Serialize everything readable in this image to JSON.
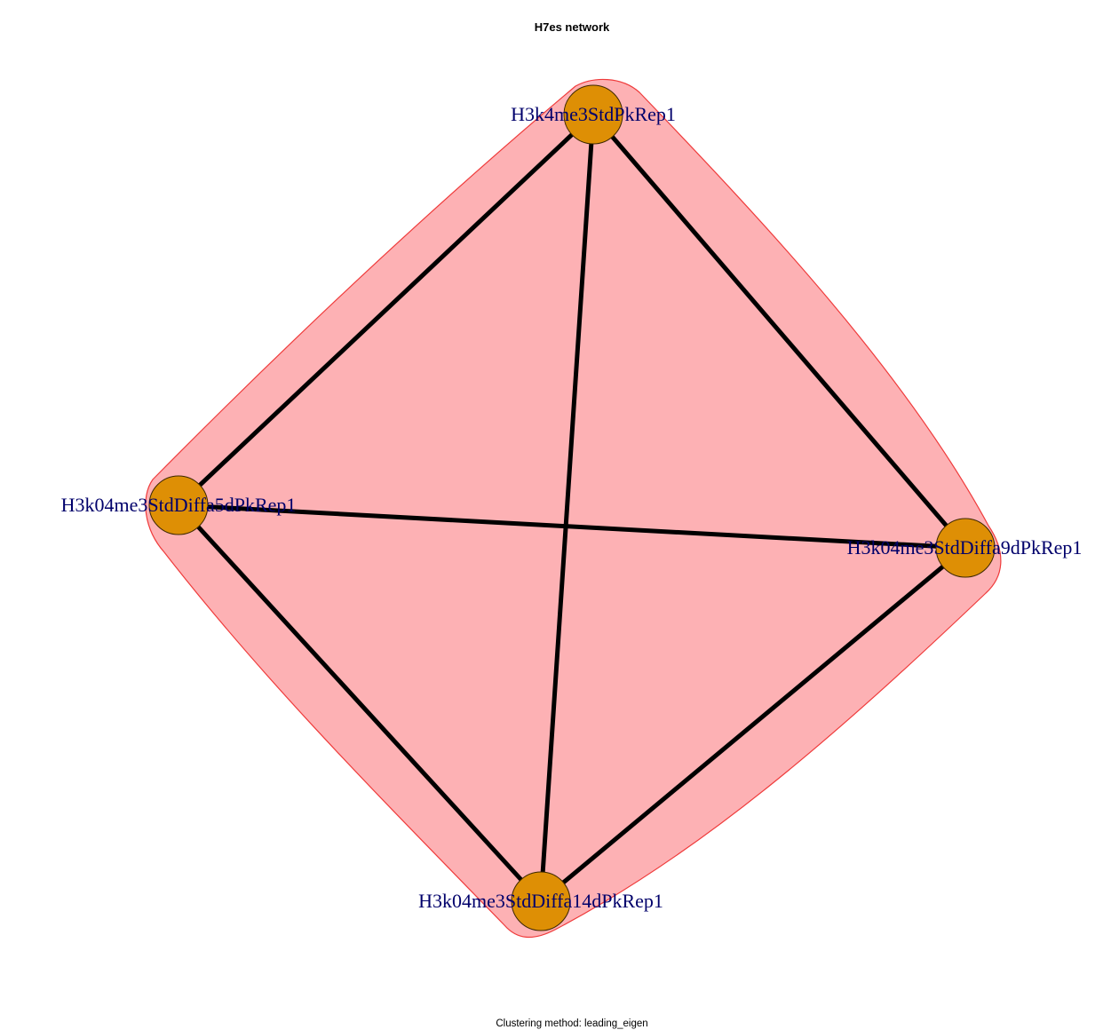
{
  "title": "H7es network",
  "subtitle": "Clustering method: leading_eigen",
  "colors": {
    "cluster_fill": "#fdb1b4",
    "cluster_stroke": "#ef3b3b",
    "node_fill": "#de8f05",
    "node_stroke": "#3d2800",
    "edge": "#000000",
    "label": "#00006b"
  },
  "nodes": [
    {
      "id": "top",
      "label": "H3k4me3StdPkRep1"
    },
    {
      "id": "left",
      "label": "H3k04me3StdDiffa5dPkRep1"
    },
    {
      "id": "right",
      "label": "H3k04me3StdDiffa9dPkRep1"
    },
    {
      "id": "bottom",
      "label": "H3k04me3StdDiffa14dPkRep1"
    }
  ],
  "edges": [
    {
      "source": "top",
      "target": "left"
    },
    {
      "source": "top",
      "target": "right"
    },
    {
      "source": "top",
      "target": "bottom"
    },
    {
      "source": "left",
      "target": "right"
    },
    {
      "source": "left",
      "target": "bottom"
    },
    {
      "source": "right",
      "target": "bottom"
    }
  ],
  "clusters": [
    {
      "members": [
        "top",
        "left",
        "right",
        "bottom"
      ]
    }
  ]
}
